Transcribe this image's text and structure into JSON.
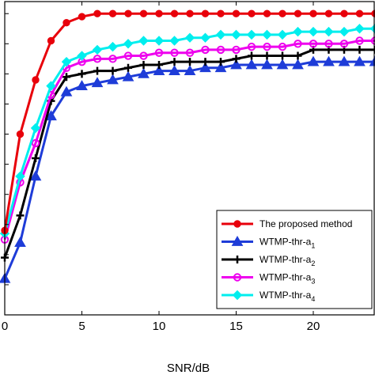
{
  "chart_data": {
    "type": "line",
    "xlabel": "SNR/dB",
    "ylabel": "",
    "xlim": [
      0,
      24
    ],
    "ylim": [
      0,
      1.04
    ],
    "x_ticks": [
      "0",
      "5",
      "10",
      "15",
      "20"
    ],
    "grid": false,
    "legend_position": "bottom-right",
    "x": [
      0,
      1,
      2,
      3,
      4,
      5,
      6,
      7,
      8,
      9,
      10,
      11,
      12,
      13,
      14,
      15,
      16,
      17,
      18,
      19,
      20,
      21,
      22,
      23,
      24
    ],
    "series": [
      {
        "name": "The proposed method",
        "color": "#e8000b",
        "marker": "circle",
        "values": [
          0.28,
          0.6,
          0.78,
          0.91,
          0.97,
          0.99,
          1.0,
          1.0,
          1.0,
          1.0,
          1.0,
          1.0,
          1.0,
          1.0,
          1.0,
          1.0,
          1.0,
          1.0,
          1.0,
          1.0,
          1.0,
          1.0,
          1.0,
          1.0,
          1.0
        ]
      },
      {
        "name": "WTMP-thr-a",
        "name_sub": "1",
        "color": "#1e3cd8",
        "marker": "triangle",
        "values": [
          0.12,
          0.24,
          0.46,
          0.66,
          0.74,
          0.76,
          0.77,
          0.78,
          0.79,
          0.8,
          0.81,
          0.81,
          0.81,
          0.82,
          0.82,
          0.83,
          0.83,
          0.83,
          0.83,
          0.83,
          0.84,
          0.84,
          0.84,
          0.84,
          0.84
        ]
      },
      {
        "name": "WTMP-thr-a",
        "name_sub": "2",
        "color": "#000000",
        "marker": "plus",
        "values": [
          0.19,
          0.33,
          0.52,
          0.71,
          0.79,
          0.8,
          0.81,
          0.81,
          0.82,
          0.83,
          0.83,
          0.84,
          0.84,
          0.84,
          0.84,
          0.85,
          0.86,
          0.86,
          0.86,
          0.86,
          0.88,
          0.88,
          0.88,
          0.88,
          0.88
        ]
      },
      {
        "name": "WTMP-thr-a",
        "name_sub": "3",
        "color": "#ee00ee",
        "marker": "circle-open",
        "values": [
          0.25,
          0.44,
          0.57,
          0.73,
          0.82,
          0.84,
          0.85,
          0.85,
          0.86,
          0.86,
          0.87,
          0.87,
          0.87,
          0.88,
          0.88,
          0.88,
          0.89,
          0.89,
          0.89,
          0.9,
          0.9,
          0.9,
          0.9,
          0.91,
          0.91
        ]
      },
      {
        "name": "WTMP-thr-a",
        "name_sub": "4",
        "color": "#00eeee",
        "marker": "diamond",
        "values": [
          0.27,
          0.46,
          0.62,
          0.76,
          0.84,
          0.86,
          0.88,
          0.89,
          0.9,
          0.91,
          0.91,
          0.91,
          0.92,
          0.92,
          0.93,
          0.93,
          0.93,
          0.93,
          0.93,
          0.94,
          0.94,
          0.94,
          0.94,
          0.95,
          0.95
        ]
      }
    ]
  }
}
